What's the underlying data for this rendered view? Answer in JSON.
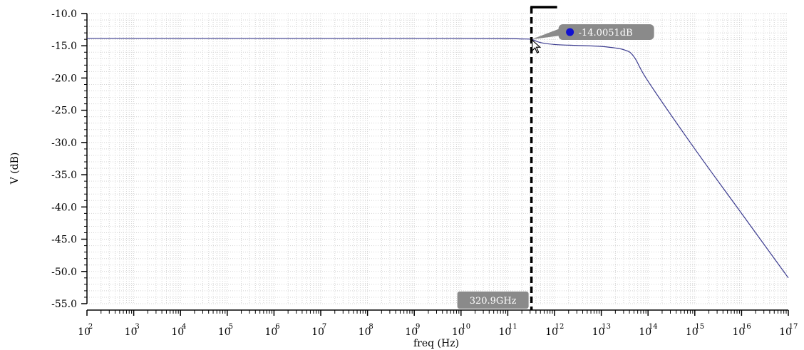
{
  "chart_data": {
    "type": "line",
    "title": "",
    "xlabel": "freq (Hz)",
    "ylabel": "V (dB)",
    "x_scale": "log",
    "x_range": [
      100,
      1e+17
    ],
    "ylim": [
      -55.0,
      -10.0
    ],
    "x_ticks": [
      {
        "base": "10",
        "exp": "2"
      },
      {
        "base": "10",
        "exp": "3"
      },
      {
        "base": "10",
        "exp": "4"
      },
      {
        "base": "10",
        "exp": "5"
      },
      {
        "base": "10",
        "exp": "6"
      },
      {
        "base": "10",
        "exp": "7"
      },
      {
        "base": "10",
        "exp": "8"
      },
      {
        "base": "10",
        "exp": "9"
      },
      {
        "base": "10",
        "exp": "10"
      },
      {
        "base": "10",
        "exp": "11"
      },
      {
        "base": "10",
        "exp": "12"
      },
      {
        "base": "10",
        "exp": "13"
      },
      {
        "base": "10",
        "exp": "14"
      },
      {
        "base": "10",
        "exp": "15"
      },
      {
        "base": "10",
        "exp": "16"
      },
      {
        "base": "10",
        "exp": "17"
      }
    ],
    "y_ticks": [
      "-10.0",
      "-15.0",
      "-20.0",
      "-25.0",
      "-30.0",
      "-35.0",
      "-40.0",
      "-45.0",
      "-50.0",
      "-55.0"
    ],
    "grid": true,
    "series": [
      {
        "color": "#3b3b8f",
        "x": [
          100,
          10000.0,
          100000000.0,
          10000000000.0,
          100000000000.0,
          200000000000.0,
          320900000000.0,
          500000000000.0,
          1000000000000.0,
          3000000000000.0,
          10000000000000.0,
          30000000000000.0,
          50000000000000.0,
          100000000000000.0,
          1000000000000000.0,
          1e+16,
          1e+17
        ],
        "y": [
          -13.85,
          -13.85,
          -13.85,
          -13.85,
          -13.88,
          -13.94,
          -14.0051,
          -14.5,
          -14.8,
          -14.95,
          -15.1,
          -15.6,
          -16.7,
          -20.5,
          -31.0,
          -41.0,
          -51.0
        ]
      }
    ],
    "markers": {
      "vertical": {
        "x": 320900000000.0,
        "label": "320.9GHz"
      },
      "point": {
        "x": 320900000000.0,
        "y": -14.0051,
        "label": "-14.0051dB"
      }
    },
    "colors": {
      "grid": "#d4d4d4",
      "curve": "#3b3b8f",
      "marker_line": "#000000",
      "label_bg": "#8a8a8a",
      "point_dot": "#1010d0"
    }
  }
}
